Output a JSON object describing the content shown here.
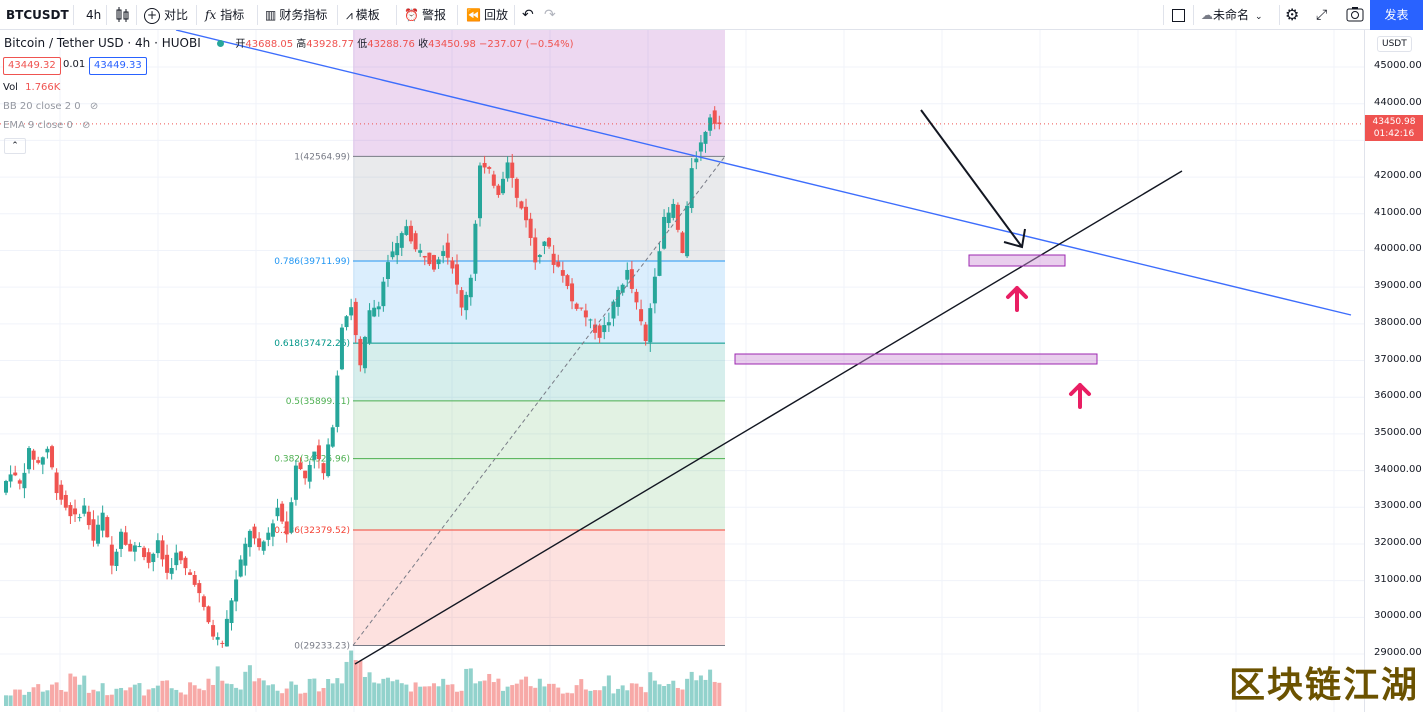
{
  "toolbar": {
    "symbol": "BTCUSDT",
    "interval": "4h",
    "compare_label": "对比",
    "indicators_label": "指标",
    "financials_label": "财务指标",
    "templates_label": "模板",
    "alerts_label": "警报",
    "replay_label": "回放",
    "layout_name": "未命名",
    "publish_label": "发表"
  },
  "legend": {
    "title": "Bitcoin / Tether USD · 4h · HUOBI",
    "open_label": "开",
    "open": "43688.05",
    "high_label": "高",
    "high": "43928.77",
    "low_label": "低",
    "low": "43288.76",
    "close_label": "收",
    "close": "43450.98",
    "change": "−237.07 (−0.54%)",
    "bid": "43449.32",
    "spread": "0.01",
    "ask": "43449.33",
    "vol_label": "Vol",
    "vol_value": "1.766K",
    "bb_label": "BB 20 close 2 0",
    "ema_label": "EMA 9 close 0"
  },
  "axis": {
    "currency": "USDT",
    "ticks": [
      "45000.00",
      "44000.00",
      "43000.00",
      "42000.00",
      "41000.00",
      "40000.00",
      "39000.00",
      "38000.00",
      "37000.00",
      "36000.00",
      "35000.00",
      "34000.00",
      "33000.00",
      "32000.00",
      "31000.00",
      "30000.00",
      "29000.00"
    ],
    "last_price": "43450.98",
    "countdown": "01:42:16"
  },
  "fib_levels": [
    {
      "label": "1(42564.99)",
      "price": 42564.99,
      "color": "#787b86"
    },
    {
      "label": "0.786(39711.99)",
      "price": 39711.99,
      "color": "#2196f3"
    },
    {
      "label": "0.618(37472.26)",
      "price": 37472.26,
      "color": "#009688"
    },
    {
      "label": "0.5(35899.11)",
      "price": 35899.11,
      "color": "#4caf50"
    },
    {
      "label": "0.382(34325.96)",
      "price": 34325.96,
      "color": "#4caf50"
    },
    {
      "label": "0.236(32379.52)",
      "price": 32379.52,
      "color": "#f44336"
    },
    {
      "label": "0(29233.23)",
      "price": 29233.23,
      "color": "#787b86"
    }
  ],
  "colors": {
    "up": "#26a69a",
    "down": "#ef5350",
    "trend_blue": "#2962ff",
    "accent": "#2962ff",
    "arrow_pink": "#e91e63",
    "box_purple": "#ce93d8"
  },
  "watermark": "区块链江湖",
  "chart_data": {
    "type": "candlestick",
    "title": "Bitcoin / Tether USD · 4h · HUOBI",
    "ylim": [
      28700,
      45700
    ],
    "y_ticks": [
      29000,
      30000,
      31000,
      32000,
      33000,
      34000,
      35000,
      36000,
      37000,
      38000,
      39000,
      40000,
      41000,
      42000,
      43000,
      44000,
      45000
    ],
    "last_price": 43450.98,
    "path": [
      33400,
      34000,
      33600,
      34500,
      34200,
      34600,
      33500,
      33000,
      32700,
      33000,
      32100,
      32800,
      31400,
      32400,
      31800,
      32000,
      31500,
      32000,
      31200,
      31700,
      31300,
      31000,
      30200,
      29500,
      29300,
      30500,
      31500,
      32400,
      31800,
      32300,
      33000,
      32300,
      34200,
      33800,
      34600,
      33900,
      35300,
      38000,
      38500,
      36800,
      38300,
      38600,
      39700,
      40100,
      40700,
      40000,
      39900,
      39600,
      40100,
      39600,
      38400,
      39300,
      42300,
      42100,
      41600,
      42500,
      41400,
      40900,
      39700,
      40300,
      39700,
      39400,
      38600,
      38400,
      38000,
      37700,
      38100,
      38900,
      39400,
      38500,
      37500,
      39400,
      40800,
      41200,
      39900,
      42300,
      42900,
      43700,
      43450.98
    ],
    "volume_relative": [
      0.2,
      0.3,
      0.25,
      0.35,
      0.3,
      0.4,
      0.3,
      0.5,
      0.45,
      0.3,
      0.35,
      0.25,
      0.4,
      0.3,
      0.35,
      0.25,
      0.3,
      0.4,
      0.3,
      0.25,
      0.35,
      0.3,
      0.5,
      0.6,
      0.4,
      0.35,
      0.7,
      0.55,
      0.4,
      0.35,
      0.3,
      0.45,
      0.3,
      0.4,
      0.35,
      0.45,
      0.5,
      1.0,
      0.85,
      0.55,
      0.45,
      0.65,
      0.5,
      0.4,
      0.35,
      0.3,
      0.4,
      0.45,
      0.35,
      0.3,
      0.55,
      0.4,
      0.6,
      0.5,
      0.35,
      0.4,
      0.45,
      0.3,
      0.4,
      0.35,
      0.3,
      0.25,
      0.4,
      0.35,
      0.3,
      0.45,
      0.3,
      0.35,
      0.4,
      0.3,
      0.55,
      0.4,
      0.45,
      0.35,
      0.5,
      0.6,
      0.55,
      0.5,
      0.4
    ]
  }
}
